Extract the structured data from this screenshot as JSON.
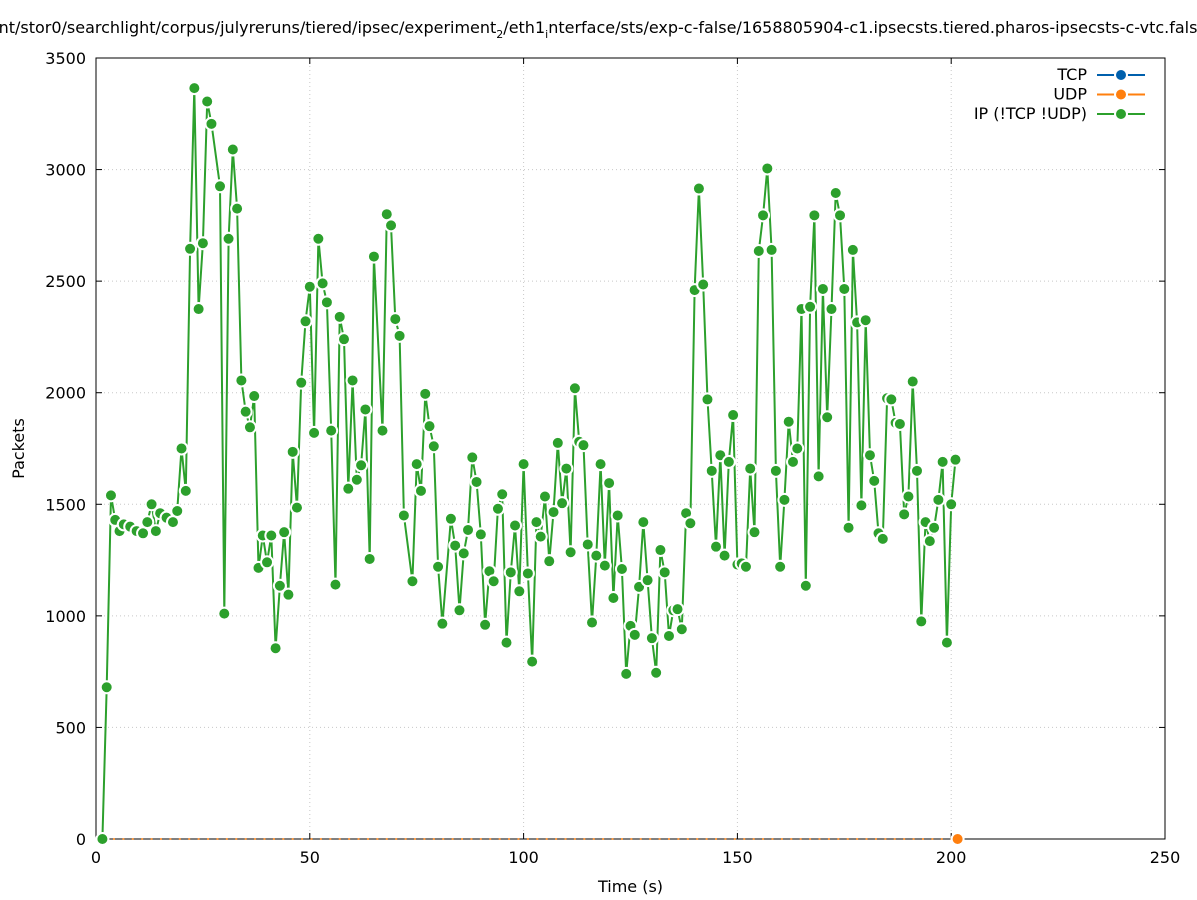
{
  "chart_data": {
    "type": "line",
    "title_prefix": "nt/stor0/searchlight/corpus/julyreruns/tiered/ipsec/experiment",
    "title_sub1": "2",
    "title_mid": "/eth1",
    "title_sub2": "i",
    "title_suffix": "nterface/sts/exp-c-false/1658805904-c1.ipsecsts.tiered.pharos-ipsecsts-c-vtc.fals",
    "xlabel": "Time (s)",
    "ylabel": "Packets",
    "xlim": [
      0,
      250
    ],
    "ylim": [
      0,
      3500
    ],
    "xticks": [
      0,
      50,
      100,
      150,
      200,
      250
    ],
    "yticks": [
      0,
      500,
      1000,
      1500,
      2000,
      2500,
      3000,
      3500
    ],
    "grid": true,
    "legend_position": "top-right",
    "series": [
      {
        "name": "TCP",
        "color": "#0060ad",
        "points": []
      },
      {
        "name": "UDP",
        "color": "#ff7f0e",
        "points": [
          [
            201.5,
            0
          ]
        ]
      },
      {
        "name": "IP (!TCP  !UDP)",
        "color": "#2ca02c",
        "points": [
          [
            1.5,
            0
          ],
          [
            2.5,
            680
          ],
          [
            3.5,
            1540
          ],
          [
            4.5,
            1430
          ],
          [
            5.5,
            1380
          ],
          [
            6.5,
            1410
          ],
          [
            8,
            1400
          ],
          [
            9.5,
            1380
          ],
          [
            11,
            1370
          ],
          [
            12,
            1420
          ],
          [
            13,
            1500
          ],
          [
            14,
            1380
          ],
          [
            15,
            1460
          ],
          [
            16.5,
            1440
          ],
          [
            18,
            1420
          ],
          [
            19,
            1470
          ],
          [
            20,
            1750
          ],
          [
            21,
            1560
          ],
          [
            22,
            2645
          ],
          [
            23,
            3365
          ],
          [
            24,
            2375
          ],
          [
            25,
            2670
          ],
          [
            26,
            3305
          ],
          [
            27,
            3205
          ],
          [
            29,
            2925
          ],
          [
            30,
            1010
          ],
          [
            31,
            2690
          ],
          [
            32,
            3090
          ],
          [
            33,
            2825
          ],
          [
            34,
            2055
          ],
          [
            35,
            1915
          ],
          [
            36,
            1845
          ],
          [
            37,
            1985
          ],
          [
            38,
            1215
          ],
          [
            39,
            1360
          ],
          [
            40,
            1240
          ],
          [
            41,
            1360
          ],
          [
            42,
            855
          ],
          [
            43,
            1135
          ],
          [
            44,
            1375
          ],
          [
            45,
            1095
          ],
          [
            46,
            1735
          ],
          [
            47,
            1485
          ],
          [
            48,
            2045
          ],
          [
            49,
            2320
          ],
          [
            50,
            2475
          ],
          [
            51,
            1820
          ],
          [
            52,
            2690
          ],
          [
            53,
            2490
          ],
          [
            54,
            2405
          ],
          [
            55,
            1830
          ],
          [
            56,
            1140
          ],
          [
            57,
            2340
          ],
          [
            58,
            2240
          ],
          [
            59,
            1570
          ],
          [
            60,
            2055
          ],
          [
            61,
            1610
          ],
          [
            62,
            1675
          ],
          [
            63,
            1925
          ],
          [
            64,
            1255
          ],
          [
            65,
            2610
          ],
          [
            67,
            1830
          ],
          [
            68,
            2800
          ],
          [
            69,
            2750
          ],
          [
            70,
            2330
          ],
          [
            71,
            2255
          ],
          [
            72,
            1450
          ],
          [
            74,
            1155
          ],
          [
            75,
            1680
          ],
          [
            76,
            1560
          ],
          [
            77,
            1995
          ],
          [
            78,
            1850
          ],
          [
            79,
            1760
          ],
          [
            80,
            1220
          ],
          [
            81,
            965
          ],
          [
            83,
            1435
          ],
          [
            84,
            1315
          ],
          [
            85,
            1025
          ],
          [
            86,
            1280
          ],
          [
            87,
            1385
          ],
          [
            88,
            1710
          ],
          [
            89,
            1600
          ],
          [
            90,
            1365
          ],
          [
            91,
            960
          ],
          [
            92,
            1200
          ],
          [
            93,
            1155
          ],
          [
            94,
            1480
          ],
          [
            95,
            1545
          ],
          [
            96,
            880
          ],
          [
            97,
            1195
          ],
          [
            98,
            1405
          ],
          [
            99,
            1110
          ],
          [
            100,
            1680
          ],
          [
            101,
            1190
          ],
          [
            102,
            795
          ],
          [
            103,
            1420
          ],
          [
            104,
            1355
          ],
          [
            105,
            1535
          ],
          [
            106,
            1245
          ],
          [
            107,
            1465
          ],
          [
            108,
            1775
          ],
          [
            109,
            1505
          ],
          [
            110,
            1660
          ],
          [
            111,
            1285
          ],
          [
            112,
            2020
          ],
          [
            113,
            1780
          ],
          [
            114,
            1765
          ],
          [
            115,
            1320
          ],
          [
            116,
            970
          ],
          [
            117,
            1270
          ],
          [
            118,
            1680
          ],
          [
            119,
            1225
          ],
          [
            120,
            1595
          ],
          [
            121,
            1080
          ],
          [
            122,
            1450
          ],
          [
            123,
            1210
          ],
          [
            124,
            740
          ],
          [
            125,
            955
          ],
          [
            126,
            915
          ],
          [
            127,
            1130
          ],
          [
            128,
            1420
          ],
          [
            129,
            1160
          ],
          [
            130,
            900
          ],
          [
            131,
            745
          ],
          [
            132,
            1295
          ],
          [
            133,
            1195
          ],
          [
            134,
            910
          ],
          [
            135,
            1025
          ],
          [
            136,
            1030
          ],
          [
            137,
            940
          ],
          [
            138,
            1460
          ],
          [
            139,
            1415
          ],
          [
            140,
            2460
          ],
          [
            141,
            2915
          ],
          [
            142,
            2485
          ],
          [
            143,
            1970
          ],
          [
            144,
            1650
          ],
          [
            145,
            1310
          ],
          [
            146,
            1720
          ],
          [
            147,
            1270
          ],
          [
            148,
            1690
          ],
          [
            149,
            1900
          ],
          [
            150,
            1230
          ],
          [
            151,
            1235
          ],
          [
            152,
            1220
          ],
          [
            153,
            1660
          ],
          [
            154,
            1375
          ],
          [
            155,
            2635
          ],
          [
            156,
            2795
          ],
          [
            157,
            3005
          ],
          [
            158,
            2640
          ],
          [
            159,
            1650
          ],
          [
            160,
            1220
          ],
          [
            161,
            1520
          ],
          [
            162,
            1870
          ],
          [
            163,
            1690
          ],
          [
            164,
            1750
          ],
          [
            165,
            2375
          ],
          [
            166,
            1135
          ],
          [
            167,
            2385
          ],
          [
            168,
            2795
          ],
          [
            169,
            1625
          ],
          [
            170,
            2465
          ],
          [
            171,
            1890
          ],
          [
            172,
            2375
          ],
          [
            173,
            2895
          ],
          [
            174,
            2795
          ],
          [
            175,
            2465
          ],
          [
            176,
            1395
          ],
          [
            177,
            2640
          ],
          [
            178,
            2315
          ],
          [
            179,
            1495
          ],
          [
            180,
            2325
          ],
          [
            181,
            1720
          ],
          [
            182,
            1605
          ],
          [
            183,
            1370
          ],
          [
            184,
            1345
          ],
          [
            185,
            1975
          ],
          [
            186,
            1970
          ],
          [
            187,
            1865
          ],
          [
            188,
            1860
          ],
          [
            189,
            1455
          ],
          [
            190,
            1535
          ],
          [
            191,
            2050
          ],
          [
            192,
            1650
          ],
          [
            193,
            975
          ],
          [
            194,
            1420
          ],
          [
            195,
            1335
          ],
          [
            196,
            1395
          ],
          [
            197,
            1520
          ],
          [
            198,
            1690
          ],
          [
            199,
            880
          ],
          [
            200,
            1500
          ],
          [
            201,
            1700
          ]
        ]
      }
    ]
  }
}
